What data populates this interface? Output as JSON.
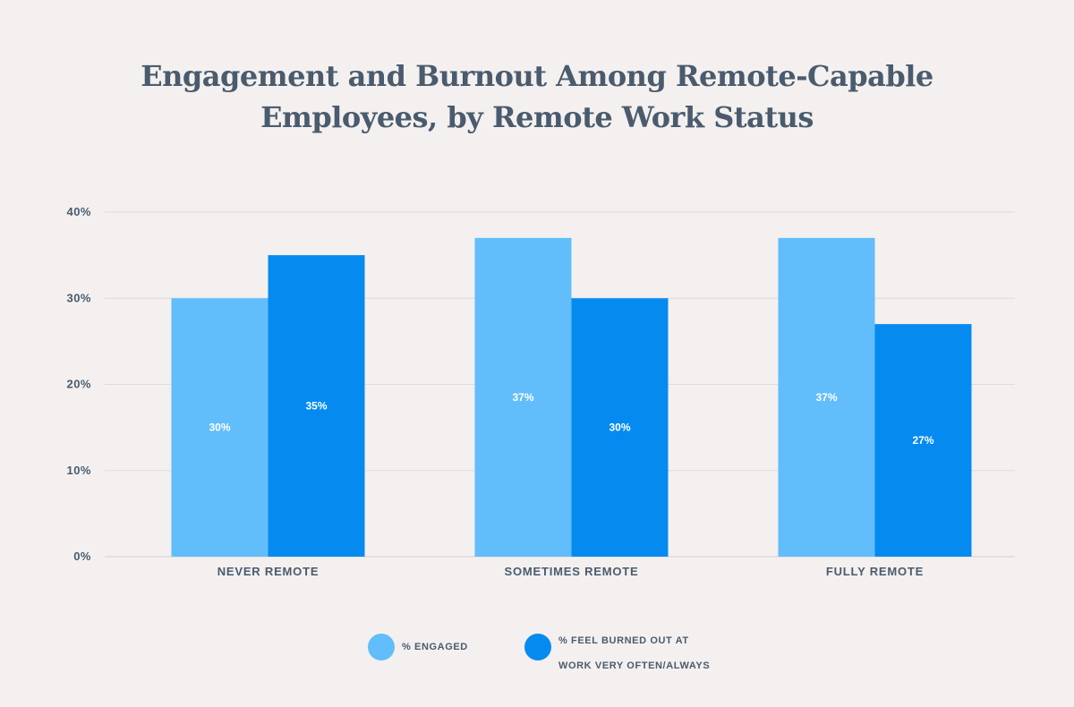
{
  "chart_data": {
    "type": "bar",
    "title": "Engagement and Burnout Among Remote-Capable Employees, by Remote Work Status",
    "title_lines": [
      "Engagement and Burnout Among Remote-Capable",
      "Employees, by Remote Work Status"
    ],
    "categories": [
      "NEVER REMOTE",
      "SOMETIMES REMOTE",
      "FULLY REMOTE"
    ],
    "series": [
      {
        "name": "% ENGAGED",
        "values": [
          30,
          37,
          37
        ],
        "labels": [
          "30%",
          "37%",
          "37%"
        ],
        "color": "#62bdfb"
      },
      {
        "name": "% FEEL BURNED OUT AT WORK VERY OFTEN/ALWAYS",
        "legend_lines": [
          "% FEEL BURNED OUT AT",
          "WORK VERY OFTEN/ALWAYS"
        ],
        "values": [
          35,
          30,
          27
        ],
        "labels": [
          "35%",
          "30%",
          "27%"
        ],
        "color": "#058bf0"
      }
    ],
    "y_ticks": [
      "0%",
      "10%",
      "20%",
      "30%",
      "40%"
    ],
    "ylim": [
      0,
      40
    ],
    "xlabel": "",
    "ylabel": "",
    "grid": true,
    "legend_position": "bottom-center"
  },
  "colors": {
    "background": "#f3f0ef",
    "text": "#4a5b6e",
    "grid": "#dedbda"
  }
}
